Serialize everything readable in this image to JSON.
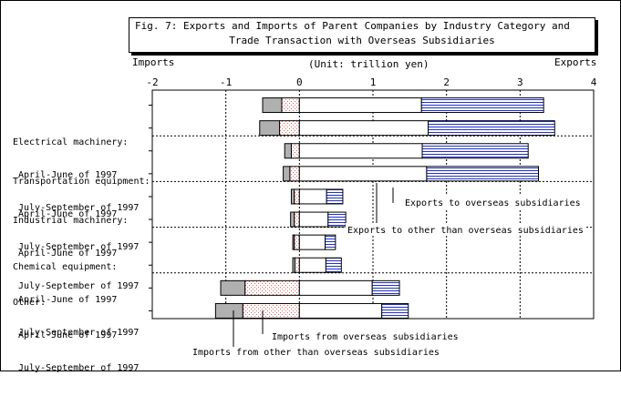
{
  "figure": {
    "title_line1": "Fig. 7: Exports and Imports of Parent Companies by Industry Category and",
    "title_line2": "Trade Transaction with Overseas Subsidiaries",
    "left_label": "Imports",
    "right_label": "Exports",
    "unit_label": "(Unit: trillion yen)"
  },
  "legend": {
    "exports_overseas": "Exports to overseas subsidiaries",
    "exports_other": "Exports to other than overseas subsidiaries",
    "imports_overseas": "Imports from overseas subsidiaries",
    "imports_other": "Imports from other than overseas subsidiaries"
  },
  "groups": [
    {
      "name": "Electrical machinery:",
      "periods": [
        "April-June of 1997",
        "July-September of 1997"
      ]
    },
    {
      "name": "Transportation equipment:",
      "periods": [
        "April-June of 1997",
        "July-September of 1997"
      ]
    },
    {
      "name": "Industrial machinery:",
      "periods": [
        "April-June of 1997",
        "July-September of 1997"
      ]
    },
    {
      "name": "Chemical equipment:",
      "periods": [
        "April-June of 1997",
        "July-September of 1997"
      ]
    },
    {
      "name": "Other:",
      "periods": [
        "April-June of 1997",
        "July-September of 1997"
      ]
    }
  ],
  "colors": {
    "exports_other": "#ffffff",
    "exports_overseas": "#2233cc",
    "imports_other": "#ee6666",
    "imports_overseas": "#b0b0b0"
  },
  "chart_data": {
    "type": "bar",
    "orientation": "horizontal",
    "stacked": true,
    "xlim": [
      -2,
      4
    ],
    "xticks": [
      "-2",
      "-1",
      "0",
      "1",
      "2",
      "3",
      "4"
    ],
    "grid": true,
    "categories": [
      "Electrical machinery: April-June of 1997",
      "Electrical machinery: July-September of 1997",
      "Transportation equipment: April-June of 1997",
      "Transportation equipment: July-September of 1997",
      "Industrial machinery: April-June of 1997",
      "Industrial machinery: July-September of 1997",
      "Chemical equipment: April-June of 1997",
      "Chemical equipment: July-September of 1997",
      "Other: April-June of 1997",
      "Other: July-September of 1997"
    ],
    "series": [
      {
        "name": "Imports from overseas subsidiaries",
        "values": [
          -0.26,
          -0.27,
          -0.09,
          -0.09,
          -0.04,
          -0.05,
          -0.02,
          -0.03,
          -0.33,
          -0.37
        ]
      },
      {
        "name": "Imports from other than overseas subsidiaries",
        "values": [
          -0.24,
          -0.27,
          -0.11,
          -0.13,
          -0.07,
          -0.07,
          -0.07,
          -0.06,
          -0.74,
          -0.77
        ]
      },
      {
        "name": "Exports to other than overseas subsidiaries",
        "values": [
          1.66,
          1.75,
          1.67,
          1.73,
          0.37,
          0.39,
          0.35,
          0.36,
          0.99,
          1.12
        ]
      },
      {
        "name": "Exports to overseas subsidiaries",
        "values": [
          1.66,
          1.72,
          1.44,
          1.52,
          0.22,
          0.24,
          0.14,
          0.21,
          0.37,
          0.36
        ]
      }
    ]
  }
}
